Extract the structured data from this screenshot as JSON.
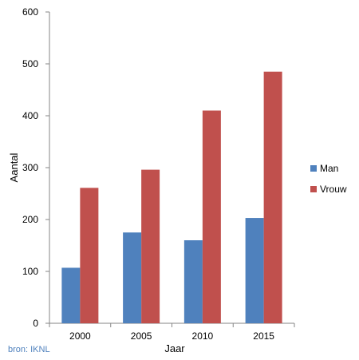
{
  "chart_data": {
    "type": "bar",
    "categories": [
      "2000",
      "2005",
      "2010",
      "2015"
    ],
    "series": [
      {
        "name": "Man",
        "color": "#4F81BD",
        "values": [
          107,
          175,
          160,
          203
        ]
      },
      {
        "name": "Vrouw",
        "color": "#C0504D",
        "values": [
          261,
          296,
          410,
          485
        ]
      }
    ],
    "xlabel": "Jaar",
    "ylabel": "Aantal",
    "ylim": [
      0,
      600
    ],
    "yticks": [
      "0",
      "100",
      "200",
      "300",
      "400",
      "500",
      "600"
    ],
    "grid": false,
    "legend": "right"
  },
  "source": "bron: IKNL"
}
